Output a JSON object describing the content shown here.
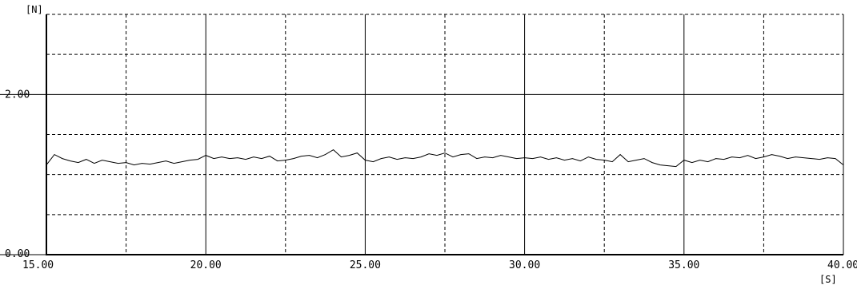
{
  "chart_data": {
    "type": "line",
    "title": "",
    "xlabel": "[S]",
    "ylabel": "[N]",
    "xlim": [
      15,
      40
    ],
    "ylim": [
      0,
      3
    ],
    "x_major_ticks": [
      15,
      20,
      25,
      30,
      35,
      40
    ],
    "x_minor_ticks": [
      17.5,
      22.5,
      27.5,
      32.5,
      37.5
    ],
    "y_major_ticks": [
      0,
      2
    ],
    "y_minor_ticks": [
      0.5,
      1,
      1.5,
      2.5
    ],
    "x_tick_labels": [
      "15.00",
      "20.00",
      "25.00",
      "30.00",
      "35.00",
      "40.00"
    ],
    "y_tick_labels": [
      "0.00",
      "2.00"
    ],
    "grid": true,
    "series": [
      {
        "x": [
          15.0,
          15.25,
          15.5,
          15.75,
          16.0,
          16.25,
          16.5,
          16.75,
          17.0,
          17.25,
          17.5,
          17.75,
          18.0,
          18.25,
          18.5,
          18.75,
          19.0,
          19.25,
          19.5,
          19.75,
          20.0,
          20.25,
          20.5,
          20.75,
          21.0,
          21.25,
          21.5,
          21.75,
          22.0,
          22.25,
          22.5,
          22.75,
          23.0,
          23.25,
          23.5,
          23.75,
          24.0,
          24.25,
          24.5,
          24.75,
          25.0,
          25.25,
          25.5,
          25.75,
          26.0,
          26.25,
          26.5,
          26.75,
          27.0,
          27.25,
          27.5,
          27.75,
          28.0,
          28.25,
          28.5,
          28.75,
          29.0,
          29.25,
          29.5,
          29.75,
          30.0,
          30.25,
          30.5,
          30.75,
          31.0,
          31.25,
          31.5,
          31.75,
          32.0,
          32.25,
          32.5,
          32.75,
          33.0,
          33.25,
          33.5,
          33.75,
          34.0,
          34.25,
          34.5,
          34.75,
          35.0,
          35.25,
          35.5,
          35.75,
          36.0,
          36.25,
          36.5,
          36.75,
          37.0,
          37.25,
          37.5,
          37.75,
          38.0,
          38.25,
          38.5,
          38.75,
          39.0,
          39.25,
          39.5,
          39.75,
          40.0
        ],
        "values": [
          1.12,
          1.25,
          1.2,
          1.17,
          1.15,
          1.19,
          1.14,
          1.18,
          1.16,
          1.14,
          1.15,
          1.12,
          1.14,
          1.13,
          1.15,
          1.17,
          1.14,
          1.16,
          1.18,
          1.19,
          1.24,
          1.2,
          1.22,
          1.2,
          1.21,
          1.19,
          1.22,
          1.2,
          1.23,
          1.17,
          1.18,
          1.2,
          1.23,
          1.24,
          1.21,
          1.25,
          1.31,
          1.22,
          1.24,
          1.27,
          1.18,
          1.16,
          1.2,
          1.22,
          1.19,
          1.21,
          1.2,
          1.22,
          1.26,
          1.24,
          1.27,
          1.22,
          1.25,
          1.26,
          1.2,
          1.22,
          1.21,
          1.24,
          1.22,
          1.2,
          1.21,
          1.2,
          1.22,
          1.19,
          1.21,
          1.18,
          1.2,
          1.17,
          1.22,
          1.19,
          1.18,
          1.16,
          1.25,
          1.16,
          1.18,
          1.2,
          1.15,
          1.12,
          1.11,
          1.1,
          1.18,
          1.15,
          1.18,
          1.16,
          1.2,
          1.19,
          1.22,
          1.21,
          1.24,
          1.2,
          1.22,
          1.25,
          1.23,
          1.2,
          1.22,
          1.21,
          1.2,
          1.19,
          1.21,
          1.2,
          1.12
        ]
      }
    ]
  }
}
